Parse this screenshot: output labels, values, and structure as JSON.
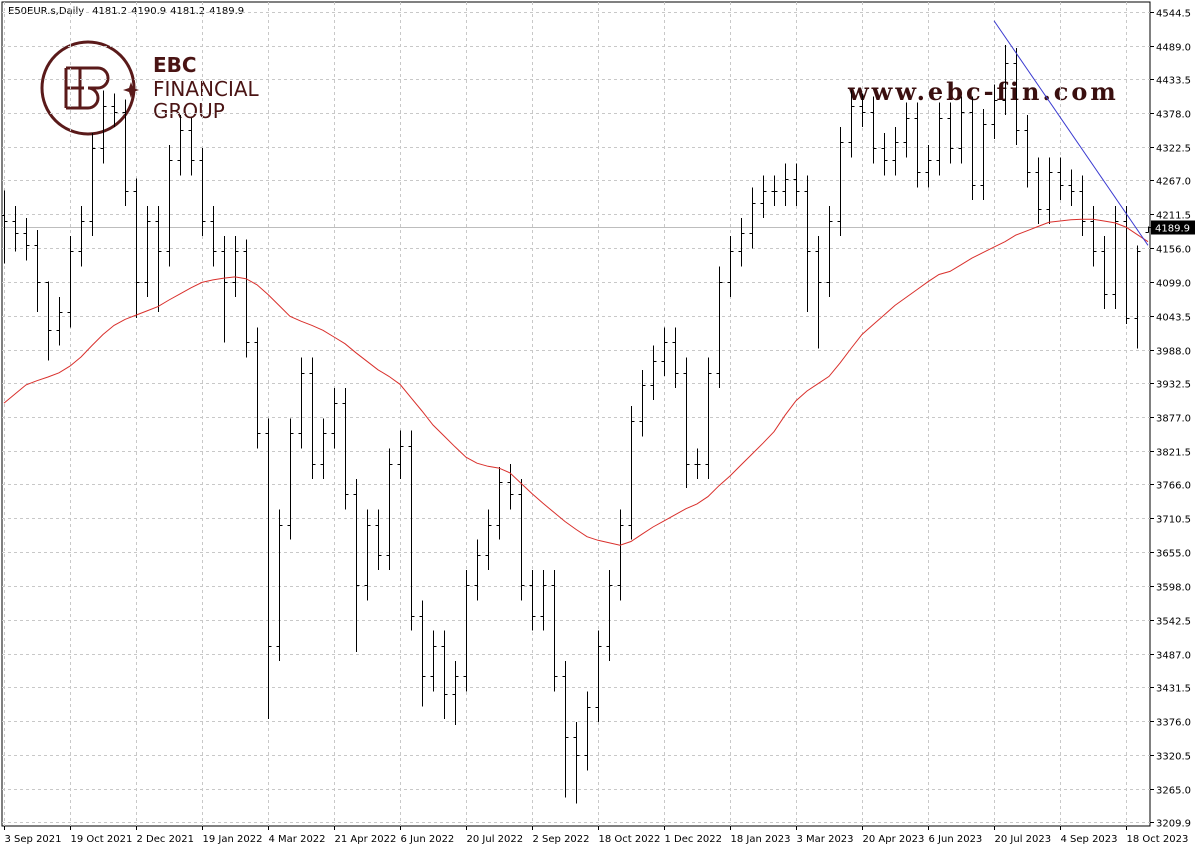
{
  "logo": {
    "name": "EBC",
    "line1": "FINANCIAL",
    "line2": "GROUP"
  },
  "watermark": "www.ebc-fin.com",
  "chart_data": {
    "type": "ohlc",
    "symbol": "E50EUR.s,Daily",
    "color": "#000000",
    "grid": true,
    "ylim": [
      3203.3,
      4560.9
    ],
    "yticks": [
      4544.5,
      {
        "value": 4489,
        "label": "4489.0"
      },
      4433.5,
      {
        "value": 4378,
        "label": "4378.0"
      },
      4322.5,
      {
        "value": 4267,
        "label": "4267.0"
      },
      4211.5,
      {
        "value": 4156,
        "label": "4156.0"
      },
      {
        "value": 4099,
        "label": "4099.0"
      },
      4043.5,
      {
        "value": 3988,
        "label": "3988.0"
      },
      3932.5,
      {
        "value": 3877,
        "label": "3877.0"
      },
      3821.5,
      {
        "value": 3766,
        "label": "3766.0"
      },
      3710.5,
      {
        "value": 3655,
        "label": "3655.0"
      },
      {
        "value": 3598,
        "label": "3598.0"
      },
      3542.5,
      {
        "value": 3487,
        "label": "3487.0"
      },
      3431.5,
      {
        "value": 3376,
        "label": "3376.0"
      },
      3320.5,
      {
        "value": 3265,
        "label": "3265.0"
      },
      3209.9
    ],
    "categories": [
      "3 Sep 2021",
      null,
      null,
      null,
      null,
      null,
      "19 Oct 2021",
      null,
      null,
      null,
      null,
      null,
      "2 Dec 2021",
      null,
      null,
      null,
      null,
      null,
      "19 Jan 2022",
      null,
      null,
      null,
      null,
      null,
      "4 Mar 2022",
      null,
      null,
      null,
      null,
      null,
      "21 Apr 2022",
      null,
      null,
      null,
      null,
      null,
      "6 Jun 2022",
      null,
      null,
      null,
      null,
      null,
      "20 Jul 2022",
      null,
      null,
      null,
      null,
      null,
      "2 Sep 2022",
      null,
      null,
      null,
      null,
      null,
      "18 Oct 2022",
      null,
      null,
      null,
      null,
      null,
      "1 Dec 2022",
      null,
      null,
      null,
      null,
      null,
      "18 Jan 2023",
      null,
      null,
      null,
      null,
      null,
      "3 Mar 2023",
      null,
      null,
      null,
      null,
      null,
      "20 Apr 2023",
      null,
      null,
      null,
      null,
      null,
      "6 Jun 2023",
      null,
      null,
      null,
      null,
      null,
      "20 Jul 2023",
      null,
      null,
      null,
      null,
      null,
      "4 Sep 2023",
      null,
      null,
      null,
      null,
      null,
      "18 Oct 2023",
      null,
      null
    ],
    "bars": [
      [
        4210,
        4250,
        4130,
        4200
      ],
      [
        4200,
        4225,
        4150,
        4180
      ],
      [
        4180,
        4205,
        4135,
        4160
      ],
      [
        4160,
        4185,
        4050,
        4100
      ],
      [
        4100,
        4100,
        3970,
        4020
      ],
      [
        4020,
        4075,
        3995,
        4050
      ],
      [
        4050,
        4175,
        4025,
        4150
      ],
      [
        4150,
        4225,
        4125,
        4200
      ],
      [
        4200,
        4345,
        4175,
        4320
      ],
      [
        4320,
        4415,
        4295,
        4390
      ],
      [
        4390,
        4410,
        4355,
        4380
      ],
      [
        4380,
        4400,
        4225,
        4250
      ],
      [
        4250,
        4270,
        4040,
        4100
      ],
      [
        4100,
        4225,
        4075,
        4200
      ],
      [
        4200,
        4225,
        4050,
        4150
      ],
      [
        4150,
        4325,
        4125,
        4300
      ],
      [
        4300,
        4375,
        4275,
        4350
      ],
      [
        4350,
        4370,
        4275,
        4300
      ],
      [
        4300,
        4320,
        4175,
        4200
      ],
      [
        4200,
        4225,
        4125,
        4150
      ],
      [
        4150,
        4175,
        4000,
        4100
      ],
      [
        4100,
        4175,
        4075,
        4150
      ],
      [
        4150,
        4170,
        3975,
        4000
      ],
      [
        4000,
        4025,
        3825,
        3850
      ],
      [
        3850,
        3875,
        3380,
        3500
      ],
      [
        3500,
        3725,
        3475,
        3700
      ],
      [
        3700,
        3875,
        3675,
        3850
      ],
      [
        3850,
        3975,
        3825,
        3950
      ],
      [
        3950,
        3975,
        3775,
        3800
      ],
      [
        3800,
        3875,
        3775,
        3850
      ],
      [
        3850,
        3925,
        3825,
        3900
      ],
      [
        3900,
        3925,
        3725,
        3750
      ],
      [
        3750,
        3775,
        3490,
        3600
      ],
      [
        3600,
        3725,
        3575,
        3700
      ],
      [
        3700,
        3725,
        3625,
        3650
      ],
      [
        3650,
        3825,
        3625,
        3800
      ],
      [
        3800,
        3855,
        3775,
        3830
      ],
      [
        3830,
        3855,
        3525,
        3550
      ],
      [
        3550,
        3575,
        3400,
        3450
      ],
      [
        3450,
        3525,
        3425,
        3500
      ],
      [
        3500,
        3525,
        3380,
        3420
      ],
      [
        3420,
        3475,
        3370,
        3450
      ],
      [
        3450,
        3625,
        3425,
        3600
      ],
      [
        3600,
        3675,
        3575,
        3650
      ],
      [
        3650,
        3725,
        3625,
        3700
      ],
      [
        3700,
        3795,
        3675,
        3770
      ],
      [
        3770,
        3800,
        3725,
        3750
      ],
      [
        3750,
        3775,
        3575,
        3600
      ],
      [
        3600,
        3625,
        3525,
        3550
      ],
      [
        3550,
        3625,
        3525,
        3600
      ],
      [
        3600,
        3625,
        3425,
        3450
      ],
      [
        3450,
        3475,
        3250,
        3350
      ],
      [
        3350,
        3375,
        3240,
        3320
      ],
      [
        3320,
        3425,
        3295,
        3400
      ],
      [
        3400,
        3525,
        3375,
        3500
      ],
      [
        3500,
        3625,
        3475,
        3600
      ],
      [
        3600,
        3725,
        3575,
        3700
      ],
      [
        3700,
        3895,
        3675,
        3870
      ],
      [
        3870,
        3955,
        3845,
        3930
      ],
      [
        3930,
        3995,
        3905,
        3970
      ],
      [
        3970,
        4025,
        3945,
        4000
      ],
      [
        4000,
        4025,
        3925,
        3950
      ],
      [
        3950,
        3975,
        3760,
        3800
      ],
      [
        3800,
        3825,
        3775,
        3800
      ],
      [
        3800,
        3975,
        3775,
        3950
      ],
      [
        3950,
        4125,
        3925,
        4100
      ],
      [
        4100,
        4175,
        4075,
        4150
      ],
      [
        4150,
        4205,
        4125,
        4180
      ],
      [
        4180,
        4255,
        4155,
        4230
      ],
      [
        4230,
        4275,
        4205,
        4250
      ],
      [
        4250,
        4275,
        4225,
        4250
      ],
      [
        4250,
        4295,
        4225,
        4270
      ],
      [
        4270,
        4295,
        4225,
        4250
      ],
      [
        4250,
        4275,
        4050,
        4150
      ],
      [
        4150,
        4175,
        3990,
        4100
      ],
      [
        4100,
        4225,
        4075,
        4200
      ],
      [
        4200,
        4355,
        4175,
        4330
      ],
      [
        4330,
        4415,
        4305,
        4390
      ],
      [
        4390,
        4410,
        4355,
        4380
      ],
      [
        4380,
        4405,
        4295,
        4320
      ],
      [
        4320,
        4345,
        4275,
        4300
      ],
      [
        4300,
        4355,
        4275,
        4330
      ],
      [
        4330,
        4395,
        4305,
        4370
      ],
      [
        4370,
        4395,
        4255,
        4280
      ],
      [
        4280,
        4325,
        4255,
        4300
      ],
      [
        4300,
        4395,
        4275,
        4370
      ],
      [
        4370,
        4395,
        4295,
        4320
      ],
      [
        4320,
        4405,
        4295,
        4380
      ],
      [
        4380,
        4405,
        4235,
        4260
      ],
      [
        4260,
        4385,
        4235,
        4360
      ],
      [
        4360,
        4425,
        4335,
        4400
      ],
      [
        4400,
        4490,
        4375,
        4460
      ],
      [
        4460,
        4485,
        4325,
        4350
      ],
      [
        4350,
        4375,
        4255,
        4280
      ],
      [
        4280,
        4305,
        4195,
        4220
      ],
      [
        4220,
        4305,
        4195,
        4280
      ],
      [
        4280,
        4305,
        4235,
        4260
      ],
      [
        4260,
        4285,
        4225,
        4250
      ],
      [
        4250,
        4275,
        4175,
        4200
      ],
      [
        4200,
        4225,
        4125,
        4150
      ],
      [
        4150,
        4175,
        4055,
        4080
      ],
      [
        4080,
        4225,
        4055,
        4200
      ],
      [
        4200,
        4225,
        4030,
        4040
      ],
      [
        4040,
        4160,
        3990,
        4150
      ],
      [
        4181.2,
        4190.9,
        4181.2,
        4189.9
      ]
    ],
    "moving_average": {
      "color": "#d9302c",
      "values": [
        3900,
        3915,
        3930,
        3937,
        3943,
        3950,
        3961,
        3976,
        3995,
        4013,
        4028,
        4038,
        4045,
        4052,
        4059,
        4070,
        4080,
        4090,
        4099,
        4103,
        4106,
        4108,
        4105,
        4095,
        4079,
        4061,
        4043,
        4035,
        4028,
        4020,
        4009,
        3998,
        3983,
        3969,
        3955,
        3944,
        3931,
        3909,
        3887,
        3864,
        3846,
        3828,
        3811,
        3801,
        3796,
        3793,
        3785,
        3768,
        3751,
        3735,
        3720,
        3705,
        3692,
        3680,
        3674,
        3670,
        3666,
        3672,
        3684,
        3696,
        3706,
        3716,
        3726,
        3734,
        3746,
        3764,
        3780,
        3798,
        3816,
        3834,
        3853,
        3880,
        3904,
        3920,
        3932,
        3944,
        3966,
        3990,
        4013,
        4029,
        4045,
        4061,
        4074,
        4087,
        4100,
        4112,
        4117,
        4128,
        4139,
        4148,
        4157,
        4166,
        4177,
        4184,
        4191,
        4198,
        4200,
        4202,
        4203,
        4203,
        4200,
        4197,
        4190,
        4178,
        4166
      ]
    },
    "trendline": {
      "color": "#3a3ad0",
      "start": 90,
      "end": 104,
      "values": [
        4530,
        4160
      ]
    }
  }
}
